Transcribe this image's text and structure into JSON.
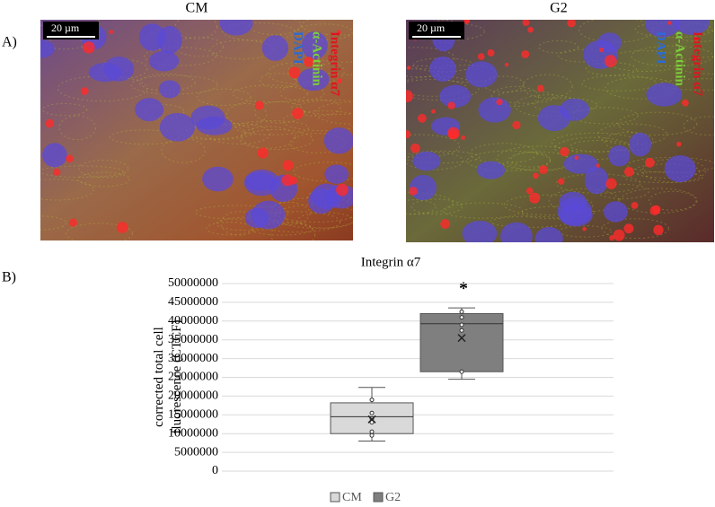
{
  "figure": {
    "panel_a_label": "A)",
    "panel_b_label": "B)",
    "images": [
      {
        "title": "CM",
        "scale_bar": "20 µm",
        "stain_labels": [
          "Integrin α7",
          "α-Actinin",
          "DAPI"
        ]
      },
      {
        "title": "G2",
        "scale_bar": "20 µm",
        "stain_labels": [
          "Integrin α7",
          "α-Actinin",
          "DAPI"
        ]
      }
    ]
  },
  "chart_data": {
    "type": "box",
    "title": "Integrin α7",
    "y_label": "corrected total cell fluorescence (CTCF)",
    "annotation": "*",
    "ylim": [
      0,
      50000000
    ],
    "yticks": [
      0,
      5000000,
      10000000,
      15000000,
      20000000,
      25000000,
      30000000,
      35000000,
      40000000,
      45000000,
      50000000
    ],
    "grid": true,
    "legend": "bottom",
    "series": [
      {
        "name": "CM",
        "color": "#d9d9d9",
        "min": 8000000,
        "q1": 10000000,
        "median": 14500000,
        "q3": 18200000,
        "max": 22300000,
        "mean": 13800000,
        "points": [
          19000000,
          15500000,
          14000000,
          13000000,
          10500000,
          9500000
        ]
      },
      {
        "name": "G2",
        "color": "#7f7f7f",
        "min": 24500000,
        "q1": 26500000,
        "median": 39300000,
        "q3": 42000000,
        "max": 43500000,
        "mean": 35500000,
        "points": [
          42500000,
          41000000,
          39000000,
          37500000,
          26500000
        ]
      }
    ]
  }
}
